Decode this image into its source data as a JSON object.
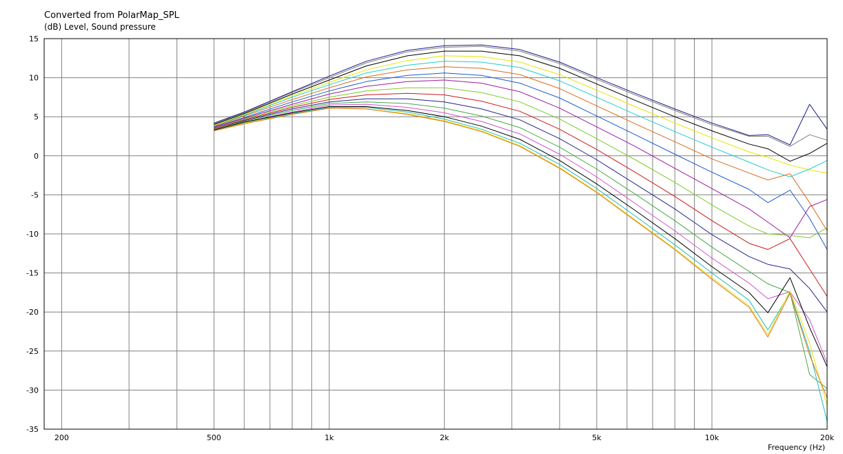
{
  "chart_data": {
    "type": "line",
    "title": "Converted from PolarMap_SPL",
    "subtitle": "(dB)  Level, Sound pressure",
    "xlabel": "Frequency  (Hz)",
    "x_scale": "log",
    "xlim": [
      180,
      20000
    ],
    "ylim": [
      -35,
      15
    ],
    "grid": true,
    "x_ticks": [
      {
        "value": 200,
        "label": "200"
      },
      {
        "value": 500,
        "label": "500"
      },
      {
        "value": 1000,
        "label": "1k"
      },
      {
        "value": 2000,
        "label": "2k"
      },
      {
        "value": 5000,
        "label": "5k"
      },
      {
        "value": 10000,
        "label": "10k"
      },
      {
        "value": 20000,
        "label": "20k"
      }
    ],
    "y_ticks": [
      {
        "value": 15,
        "label": "15"
      },
      {
        "value": 10,
        "label": "10"
      },
      {
        "value": 5,
        "label": "5"
      },
      {
        "value": 0,
        "label": "0"
      },
      {
        "value": -5,
        "label": "-5"
      },
      {
        "value": -10,
        "label": "-10"
      },
      {
        "value": -15,
        "label": "-15"
      },
      {
        "value": -20,
        "label": "-20"
      },
      {
        "value": -25,
        "label": "-25"
      },
      {
        "value": -30,
        "label": "-30"
      },
      {
        "value": -35,
        "label": "-35"
      }
    ],
    "x": [
      500,
      600,
      800,
      1000,
      1250,
      1600,
      2000,
      2500,
      3150,
      4000,
      5000,
      6300,
      8000,
      10000,
      12500,
      14000,
      16000,
      18000,
      20000
    ],
    "series": [
      {
        "color": "#1a1a8c",
        "values": [
          4.2,
          5.6,
          8.2,
          10.2,
          12.1,
          13.5,
          14.1,
          14.2,
          13.6,
          12.0,
          10.0,
          8.0,
          6.0,
          4.2,
          2.6,
          2.7,
          1.4,
          6.6,
          3.4
        ]
      },
      {
        "color": "#7f7f7f",
        "values": [
          4.1,
          5.5,
          8.1,
          10.0,
          11.9,
          13.3,
          13.9,
          14.0,
          13.4,
          11.8,
          9.8,
          7.8,
          5.8,
          4.0,
          2.5,
          2.5,
          1.2,
          2.7,
          2.0
        ]
      },
      {
        "color": "#000000",
        "values": [
          4.0,
          5.4,
          7.9,
          9.7,
          11.5,
          12.8,
          13.4,
          13.4,
          12.8,
          11.2,
          9.2,
          7.1,
          5.0,
          3.2,
          1.5,
          0.9,
          -0.7,
          0.3,
          1.6
        ]
      },
      {
        "color": "#e6e600",
        "values": [
          3.9,
          5.3,
          7.7,
          9.4,
          11.0,
          12.2,
          12.8,
          12.7,
          12.0,
          10.4,
          8.4,
          6.3,
          4.2,
          2.3,
          0.5,
          -0.2,
          -1.2,
          -1.8,
          -2.2
        ]
      },
      {
        "color": "#22cccc",
        "values": [
          3.8,
          5.2,
          7.5,
          9.1,
          10.6,
          11.6,
          12.1,
          12.0,
          11.3,
          9.6,
          7.5,
          5.3,
          3.1,
          1.1,
          -0.8,
          -1.8,
          -2.7,
          -1.7,
          -0.6
        ]
      },
      {
        "color": "#d96a1a",
        "values": [
          3.8,
          5.1,
          7.2,
          8.7,
          10.1,
          11.0,
          11.4,
          11.2,
          10.4,
          8.6,
          6.4,
          4.1,
          1.8,
          -0.4,
          -2.2,
          -3.1,
          -2.3,
          -6.0,
          -9.6
        ]
      },
      {
        "color": "#1a5ccc",
        "values": [
          3.7,
          4.9,
          6.9,
          8.3,
          9.5,
          10.3,
          10.6,
          10.3,
          9.3,
          7.4,
          5.1,
          2.7,
          0.2,
          -2.1,
          -4.3,
          -6.0,
          -4.4,
          -8.0,
          -12.0
        ]
      },
      {
        "color": "#9e1a9e",
        "values": [
          3.6,
          4.8,
          6.6,
          7.9,
          8.9,
          9.5,
          9.7,
          9.3,
          8.2,
          6.1,
          3.7,
          1.2,
          -1.6,
          -4.2,
          -6.8,
          -8.5,
          -10.5,
          -6.5,
          -5.6
        ]
      },
      {
        "color": "#7acc22",
        "values": [
          3.5,
          4.7,
          6.4,
          7.5,
          8.3,
          8.7,
          8.7,
          8.1,
          6.9,
          4.7,
          2.2,
          -0.5,
          -3.4,
          -6.3,
          -9.0,
          -10.0,
          -10.2,
          -10.5,
          -9.2
        ]
      },
      {
        "color": "#cc1a1a",
        "values": [
          3.5,
          4.6,
          6.2,
          7.2,
          7.8,
          8.0,
          7.8,
          7.0,
          5.7,
          3.4,
          0.8,
          -2.1,
          -5.2,
          -8.3,
          -11.2,
          -12.0,
          -10.6,
          -14.5,
          -18.0
        ]
      },
      {
        "color": "#23238f",
        "values": [
          3.4,
          4.5,
          6.0,
          6.9,
          7.3,
          7.3,
          6.9,
          6.0,
          4.6,
          2.2,
          -0.5,
          -3.6,
          -6.8,
          -10.1,
          -12.9,
          -13.9,
          -14.5,
          -17.0,
          -20.0
        ]
      },
      {
        "color": "#44aa44",
        "values": [
          3.4,
          4.4,
          5.8,
          6.7,
          6.9,
          6.7,
          6.1,
          5.1,
          3.6,
          1.1,
          -1.7,
          -4.9,
          -8.3,
          -11.7,
          -14.8,
          -16.4,
          -17.5,
          -28.0,
          -29.8
        ]
      },
      {
        "color": "#cc55cc",
        "values": [
          3.3,
          4.3,
          5.6,
          6.5,
          6.6,
          6.2,
          5.5,
          4.4,
          2.8,
          0.2,
          -2.7,
          -6.1,
          -9.6,
          -13.1,
          -16.3,
          -18.3,
          -17.4,
          -21.0,
          -26.5
        ]
      },
      {
        "color": "#000000",
        "values": [
          3.3,
          4.3,
          5.5,
          6.3,
          6.3,
          5.8,
          5.0,
          3.8,
          2.1,
          -0.6,
          -3.6,
          -7.0,
          -10.6,
          -14.2,
          -17.5,
          -20.1,
          -15.6,
          -22.0,
          -27.0
        ]
      },
      {
        "color": "#22bbbb",
        "values": [
          3.2,
          4.2,
          5.4,
          6.2,
          6.2,
          5.6,
          4.7,
          3.4,
          1.6,
          -1.1,
          -4.2,
          -7.7,
          -11.4,
          -15.0,
          -18.5,
          -22.3,
          -17.5,
          -25.0,
          -34.0
        ]
      },
      {
        "color": "#e6e600",
        "values": [
          3.2,
          4.2,
          5.3,
          6.1,
          6.0,
          5.4,
          4.5,
          3.2,
          1.3,
          -1.5,
          -4.6,
          -8.2,
          -11.9,
          -15.6,
          -19.2,
          -22.9,
          -17.3,
          -24.0,
          -32.0
        ]
      },
      {
        "color": "#e07020",
        "values": [
          3.2,
          4.1,
          5.3,
          6.1,
          6.0,
          5.3,
          4.4,
          3.1,
          1.2,
          -1.6,
          -4.7,
          -8.3,
          -12.0,
          -15.8,
          -19.4,
          -23.2,
          -17.6,
          -25.5,
          -31.0
        ]
      }
    ]
  }
}
